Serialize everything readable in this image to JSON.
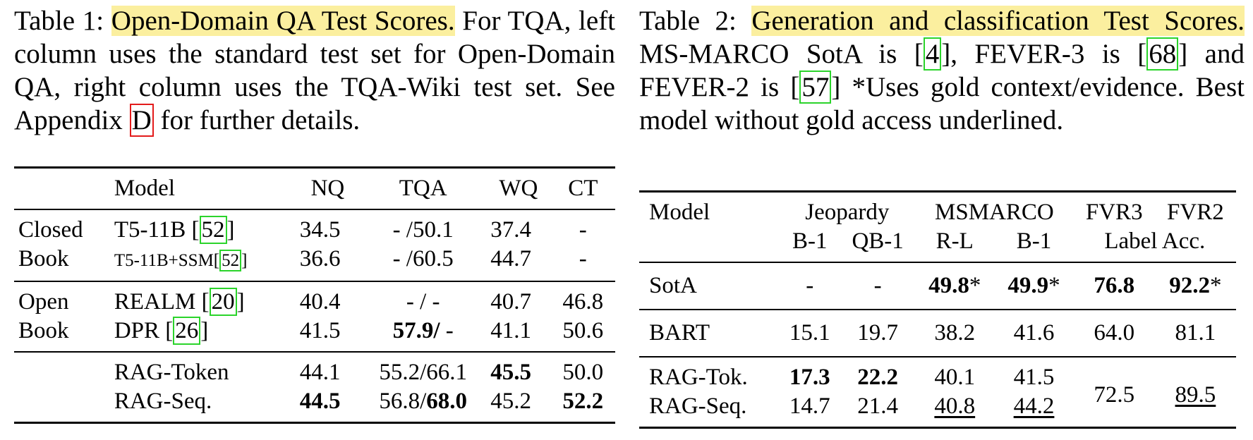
{
  "table1": {
    "caption": [
      {
        "t": "Table 1: "
      },
      {
        "t": "Open-Domain QA Test Scores.",
        "hl": true
      },
      {
        "t": " For TQA, left column uses the standard test set for Open-Domain QA, right column uses the TQA-Wiki test set. See Appendix "
      },
      {
        "t": "D",
        "ref": true,
        "red": true
      },
      {
        "t": " for further details."
      }
    ],
    "header": [
      "Model",
      "NQ",
      "TQA",
      "WQ",
      "CT"
    ],
    "groups": [
      {
        "label": [
          "Closed",
          "Book"
        ],
        "rows": [
          {
            "model": [
              "T5-11B [",
              {
                "t": "52",
                "ref": true
              },
              "]"
            ],
            "cells": [
              "34.5",
              "- /50.1",
              "37.4",
              "-"
            ]
          },
          {
            "model": [
              {
                "t": "T5-11B+SSM[",
                "small": true
              },
              {
                "t": "52",
                "ref": true,
                "small": true
              },
              {
                "t": "]",
                "small": true
              }
            ],
            "cells": [
              "36.6",
              "- /60.5",
              "44.7",
              "-"
            ]
          }
        ]
      },
      {
        "label": [
          "Open",
          "Book"
        ],
        "rows": [
          {
            "model": [
              "REALM [",
              {
                "t": "20",
                "ref": true
              },
              "]"
            ],
            "cells": [
              "40.4",
              "- / -",
              "40.7",
              "46.8"
            ]
          },
          {
            "model": [
              "DPR [",
              {
                "t": "26",
                "ref": true
              },
              "]"
            ],
            "cells": [
              "41.5",
              [
                {
                  "t": "57.9/",
                  "b": true
                },
                " -"
              ],
              "41.1",
              "50.6"
            ]
          }
        ]
      },
      {
        "rows": [
          {
            "model": [
              "RAG-Token"
            ],
            "cells": [
              "44.1",
              "55.2/66.1",
              {
                "t": "45.5",
                "b": true
              },
              "50.0"
            ]
          },
          {
            "model": [
              "RAG-Seq."
            ],
            "cells": [
              {
                "t": "44.5",
                "b": true
              },
              [
                "56.8/",
                {
                  "t": "68.0",
                  "b": true
                }
              ],
              "45.2",
              {
                "t": "52.2",
                "b": true
              }
            ]
          }
        ]
      }
    ]
  },
  "table2": {
    "caption": [
      {
        "t": "Table 2: "
      },
      {
        "t": "Generation and classification Test Scores.",
        "hl": true
      },
      {
        "t": " MS-MARCO SotA is ["
      },
      {
        "t": "4",
        "ref": true
      },
      {
        "t": "], FEVER-3 is ["
      },
      {
        "t": "68",
        "ref": true
      },
      {
        "t": "] and FEVER-2 is ["
      },
      {
        "t": "57",
        "ref": true
      },
      {
        "t": "] *Uses gold context/evidence. Best model without gold access underlined."
      }
    ],
    "header1": [
      {
        "t": "Model",
        "span": 1
      },
      {
        "t": "Jeopardy",
        "span": 2
      },
      {
        "t": "MSMARCO",
        "span": 2
      },
      {
        "t": "FVR3",
        "span": 1
      },
      {
        "t": "FVR2",
        "span": 1
      }
    ],
    "header2": [
      {
        "t": "B-1",
        "span": 1
      },
      {
        "t": "QB-1",
        "span": 1
      },
      {
        "t": "R-L",
        "span": 1
      },
      {
        "t": "B-1",
        "span": 1
      },
      {
        "t": "Label Acc.",
        "span": 2
      }
    ],
    "sections": [
      {
        "rows": [
          {
            "model": "SotA",
            "cells": [
              "-",
              "-",
              [
                {
                  "t": "49.8",
                  "b": true
                },
                "*"
              ],
              [
                {
                  "t": "49.9",
                  "b": true
                },
                "*"
              ],
              {
                "t": "76.8",
                "b": true
              },
              [
                {
                  "t": "92.2",
                  "b": true
                },
                "*"
              ]
            ]
          }
        ]
      },
      {
        "rows": [
          {
            "model": "BART",
            "cells": [
              "15.1",
              "19.7",
              "38.2",
              "41.6",
              "64.0",
              "81.1"
            ]
          }
        ]
      },
      {
        "rows": [
          {
            "model": "RAG-Tok.",
            "cells": [
              {
                "t": "17.3",
                "b": true
              },
              {
                "t": "22.2",
                "b": true
              },
              "40.1",
              "41.5"
            ]
          },
          {
            "model": "RAG-Seq.",
            "cells": [
              "14.7",
              "21.4",
              {
                "t": "40.8",
                "u": true
              },
              {
                "t": "44.2",
                "u": true
              }
            ]
          }
        ],
        "shared": [
          "72.5",
          {
            "t": "89.5",
            "u": true
          }
        ]
      }
    ]
  }
}
